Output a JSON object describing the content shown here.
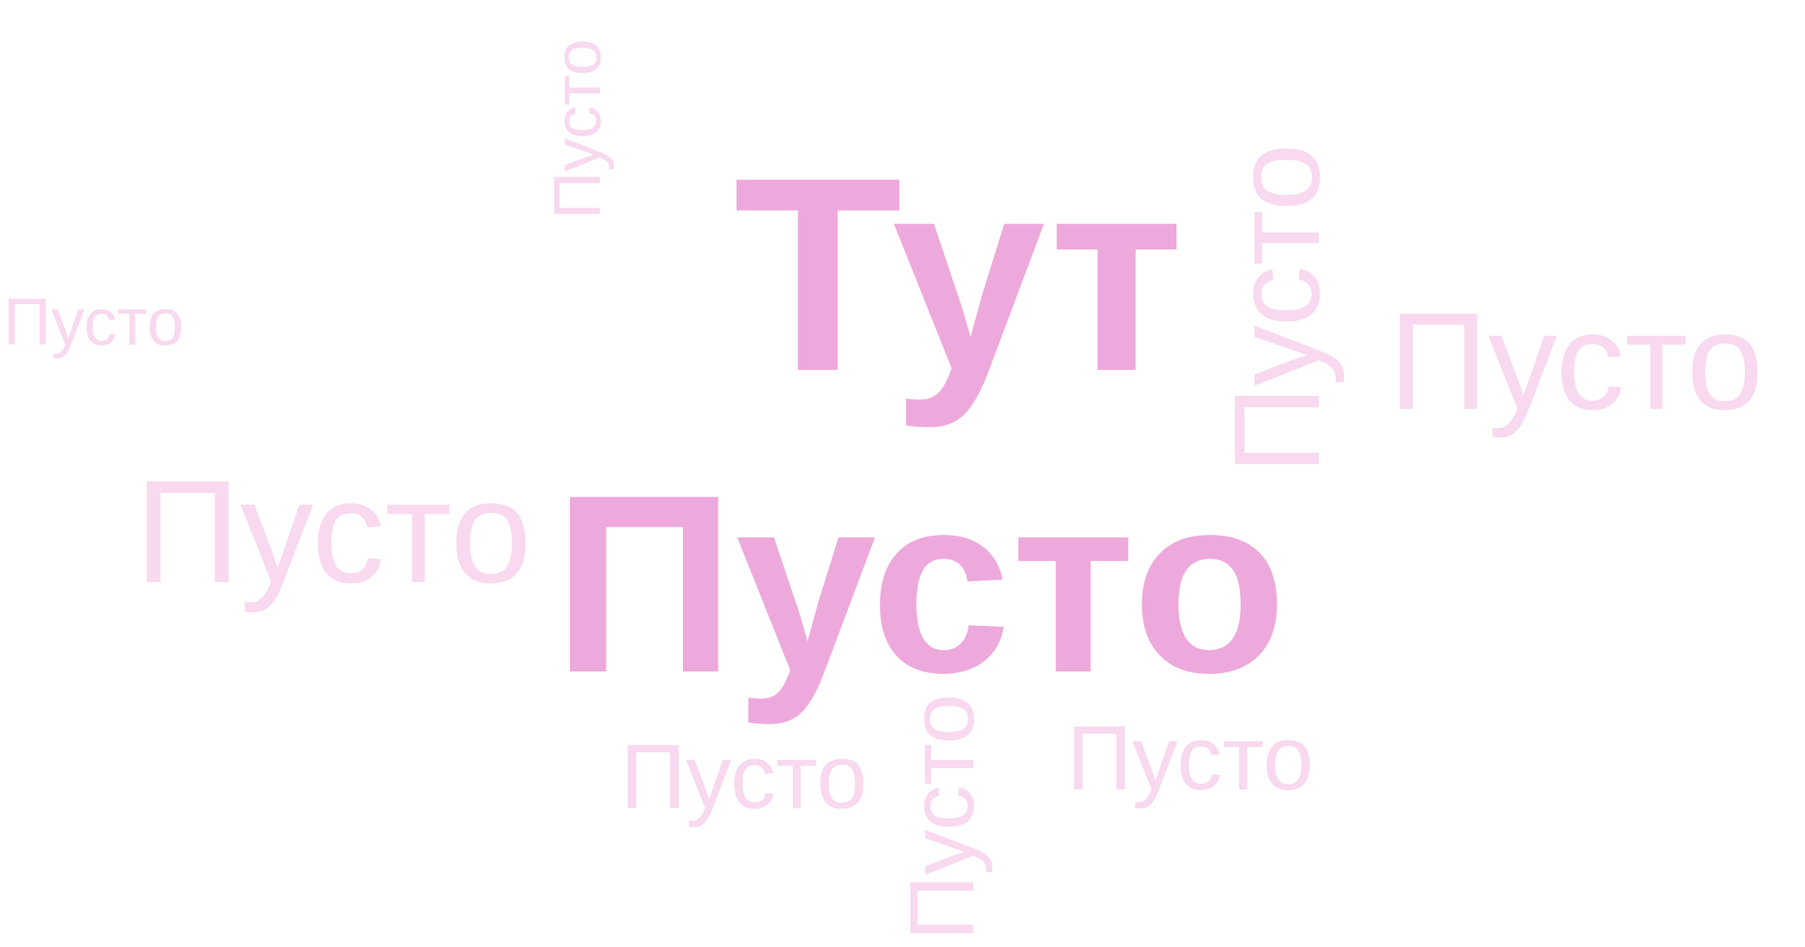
{
  "colors": {
    "background": "#ffffff",
    "strong": "#eea9dc",
    "light": "#f8d9ef"
  },
  "words": {
    "tut": "Тут",
    "pusto_big": "Пусто",
    "pusto": "Пусто"
  }
}
